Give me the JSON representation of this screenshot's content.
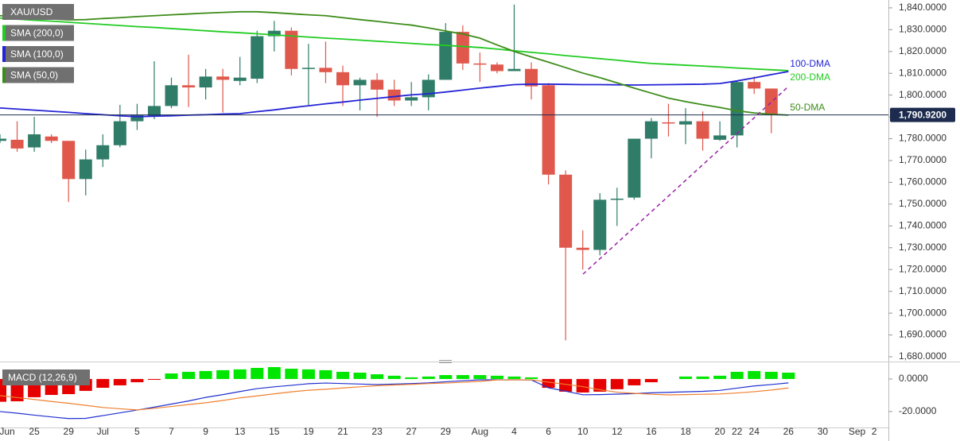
{
  "chart_data": [
    {
      "type": "candlestick",
      "categories": [
        "Jun",
        null,
        "25",
        null,
        "29",
        null,
        "Jul",
        null,
        "5",
        null,
        "7",
        null,
        "9",
        null,
        "13",
        null,
        "15",
        null,
        "19",
        null,
        "21",
        null,
        "23",
        null,
        "27",
        null,
        "29",
        null,
        "Aug",
        null,
        "4",
        null,
        "6",
        null,
        "10",
        null,
        "12",
        null,
        "16",
        null,
        "18",
        null,
        "20",
        "22",
        "24",
        null,
        "26",
        null,
        "30",
        null,
        "Sep",
        "2"
      ],
      "ylim": [
        1678.9,
        1843.6
      ],
      "yticks": [
        {
          "value": 1680,
          "label": "1,680.0000"
        },
        {
          "value": 1690,
          "label": "1,690.0000"
        },
        {
          "value": 1700,
          "label": "1,700.0000"
        },
        {
          "value": 1710,
          "label": "1,710.0000"
        },
        {
          "value": 1720,
          "label": "1,720.0000"
        },
        {
          "value": 1730,
          "label": "1,730.0000"
        },
        {
          "value": 1740,
          "label": "1,740.0000"
        },
        {
          "value": 1750,
          "label": "1,750.0000"
        },
        {
          "value": 1760,
          "label": "1,760.0000"
        },
        {
          "value": 1770,
          "label": "1,770.0000"
        },
        {
          "value": 1780,
          "label": "1,780.0000"
        },
        {
          "value": 1790,
          "label": "1,790.0000"
        },
        {
          "value": 1800,
          "label": "1,800.0000"
        },
        {
          "value": 1810,
          "label": "1,810.0000"
        },
        {
          "value": 1820,
          "label": "1,820.0000"
        },
        {
          "value": 1830,
          "label": "1,830.0000"
        },
        {
          "value": 1840,
          "label": "1,840.0000"
        }
      ],
      "last_price": {
        "value": 1790.92,
        "label": "1,790.9200"
      },
      "series": [
        {
          "name": "XAU/USD",
          "up_color": "#2f7d68",
          "down_color": "#e0574b",
          "open": [
            1779,
            1779.5,
            1776,
            1781,
            1779,
            1761.5,
            1770.5,
            1777,
            1788,
            1790.5,
            1795,
            1804.5,
            1803.5,
            1808.5,
            1806.5,
            1807.5,
            1827,
            1829.5,
            1812.5,
            1812.5,
            1810.5,
            1804.5,
            1807,
            1802.5,
            1797.5,
            1799,
            1807,
            1829,
            1814.5,
            1814,
            1811,
            1812,
            1804.5,
            1763.5,
            1730,
            1729,
            1752,
            1753,
            1780,
            1787.5,
            1786.5,
            1788,
            1779.5,
            1781.5,
            1806,
            1803,
            null,
            null,
            null,
            null,
            null,
            null
          ],
          "high": [
            1782,
            1788,
            1790,
            1782,
            1779,
            1775,
            1782,
            1795.5,
            1796,
            1815.5,
            1808,
            1818.5,
            1812,
            1812,
            1817.5,
            1829.5,
            1834,
            1831,
            1823.5,
            1824.5,
            1813.5,
            1808,
            1810,
            1807,
            1806,
            1809.5,
            1833,
            1832,
            1819.5,
            1815,
            1841.5,
            1815,
            1805.5,
            1765.5,
            1738,
            1755,
            1757.5,
            1780,
            1789.5,
            1796,
            1794,
            1792.5,
            1788,
            1806.5,
            1808.5,
            1803,
            null,
            null,
            null,
            null,
            null,
            null
          ],
          "low": [
            1778,
            1774,
            1774,
            1778,
            1751,
            1754,
            1767,
            1776,
            1784,
            1789,
            1794,
            1794.5,
            1798,
            1792,
            1804.5,
            1805.5,
            1820,
            1809,
            1795.5,
            1805.5,
            1795,
            1793,
            1790,
            1795,
            1795,
            1793,
            1807,
            1811.5,
            1806,
            1810,
            1811,
            1798,
            1759,
            1687.5,
            1720,
            1726.5,
            1740,
            1752,
            1771,
            1781,
            1777.5,
            1774.5,
            1779,
            1776,
            1800.5,
            1782.5,
            null,
            null,
            null,
            null,
            null,
            null
          ],
          "close": [
            1780,
            1775.5,
            1782,
            1779,
            1761.5,
            1770.5,
            1777,
            1788,
            1791,
            1795,
            1804.5,
            1803.5,
            1808.5,
            1807,
            1808,
            1827,
            1829.5,
            1812,
            1812.5,
            1810.5,
            1804.5,
            1807,
            1802.5,
            1797.5,
            1799,
            1807,
            1829,
            1814.5,
            1814,
            1811,
            1812,
            1804,
            1763.5,
            1730,
            1729,
            1752,
            1752.5,
            1780,
            1788,
            1787,
            1788,
            1780,
            1781.5,
            1806,
            1803,
            1791,
            null,
            null,
            null,
            null,
            null,
            null
          ]
        }
      ],
      "lines": [
        {
          "name": "SMA (200,0)",
          "label": "200-DMA",
          "color": "#22cc22",
          "values": [
            1835.3,
            1834.8,
            1834.3,
            1833.9,
            1833.4,
            1832.9,
            1832.4,
            1831.9,
            1831.4,
            1831,
            1830.5,
            1830,
            1829.5,
            1829,
            1828.6,
            1828.1,
            1827.6,
            1827.1,
            1826.6,
            1826.1,
            1825.7,
            1825.2,
            1824.7,
            1824.2,
            1823.7,
            1823.2,
            1822.8,
            1822.3,
            1821.8,
            1821.1,
            1820.3,
            1819.6,
            1818.9,
            1818.1,
            1817.4,
            1816.7,
            1816,
            1815.2,
            1814.5,
            1814.1,
            1813.7,
            1813.3,
            1812.9,
            1812.4,
            1812,
            1811.6,
            1811.2,
            null,
            null,
            null,
            null,
            null
          ]
        },
        {
          "name": "SMA (100,0)",
          "label": "100-DMA",
          "color": "#2424d6",
          "values": [
            1794.1,
            1793.6,
            1793.1,
            1792.6,
            1792.1,
            1791.5,
            1791,
            1790.5,
            1790.1,
            1790.3,
            1790.5,
            1790.8,
            1791,
            1791.3,
            1791.5,
            1792.4,
            1793.2,
            1794.2,
            1795.1,
            1796,
            1796.8,
            1797.7,
            1798.5,
            1799.3,
            1800.1,
            1800.6,
            1801.4,
            1802.3,
            1803.2,
            1804,
            1804.8,
            1805,
            1805,
            1804.9,
            1804.8,
            1804.8,
            1804.7,
            1804.6,
            1804.7,
            1804.8,
            1804.9,
            1805,
            1805.3,
            1806.5,
            1807.9,
            1809.4,
            1810.8,
            null,
            null,
            null,
            null,
            null
          ]
        },
        {
          "name": "SMA (50,0)",
          "label": "50-DMA",
          "color": "#3d8c1a",
          "values": [
            1836.4,
            1835.9,
            1835.4,
            1834.9,
            1834.5,
            1834.6,
            1835.1,
            1835.5,
            1836,
            1836.4,
            1836.8,
            1837.2,
            1837.6,
            1837.9,
            1838.2,
            1838.2,
            1837.8,
            1837.3,
            1836.8,
            1836.4,
            1835.5,
            1834.6,
            1833.8,
            1832.9,
            1832.1,
            1830.8,
            1829.4,
            1828,
            1826.1,
            1823,
            1820,
            1817.5,
            1815.1,
            1812.6,
            1810.1,
            1808,
            1805.6,
            1803.2,
            1800.9,
            1798.6,
            1797,
            1795.6,
            1794.3,
            1792.8,
            1791.8,
            1791.2,
            1790.8,
            null,
            null,
            null,
            null,
            null
          ]
        }
      ]
    },
    {
      "type": "macd",
      "name": "MACD (12,26,9)",
      "ylim": [
        -29.8,
        7.3
      ],
      "yticks": [
        {
          "value": 0,
          "label": "0.0000"
        },
        {
          "value": -20,
          "label": "-20.0000"
        }
      ],
      "histogram": {
        "up_color": "#00e600",
        "down_color": "#e60000",
        "values": [
          -14,
          -13.7,
          -11.2,
          -9.8,
          -9.3,
          -7.3,
          -5.4,
          -3.9,
          -2,
          -0.5,
          3.4,
          4.4,
          4.9,
          5.4,
          5.9,
          6.8,
          7.3,
          6.3,
          5.9,
          5.4,
          4.4,
          3.9,
          2.9,
          2,
          1,
          1.5,
          2.4,
          2.4,
          2.4,
          2,
          1.5,
          1,
          -5.4,
          -7.8,
          -8.3,
          -7.8,
          -6.3,
          -3.9,
          -2,
          0,
          1.5,
          1.5,
          2,
          4.4,
          4.9,
          4.4,
          3.9,
          null,
          null,
          null,
          null,
          null
        ]
      },
      "series": [
        {
          "color": "#2030d0",
          "values": [
            -20,
            -21,
            -22.2,
            -23.3,
            -24.3,
            -24.2,
            -22.5,
            -20.8,
            -19.1,
            -17.3,
            -15.4,
            -13.5,
            -11.3,
            -9.6,
            -7.7,
            -5.9,
            -4.8,
            -3.9,
            -2.9,
            -2.5,
            -2.8,
            -3.1,
            -3.4,
            -3.1,
            -2.8,
            -2.4,
            -1.7,
            -1.1,
            -0.5,
            -0.5,
            -0.5,
            -0.6,
            -5.4,
            -7.5,
            -9.7,
            -9.6,
            -9.3,
            -9,
            -8.5,
            -8.2,
            -7.9,
            -7.6,
            -7,
            -5.6,
            -4.3,
            -3.4,
            -2.4,
            null,
            null,
            null,
            null,
            null
          ]
        },
        {
          "color": "#f08030",
          "values": [
            -10.2,
            -11.4,
            -12.6,
            -13.8,
            -14.9,
            -16.2,
            -17.5,
            -18.3,
            -19,
            -18,
            -16.9,
            -15.7,
            -14.6,
            -13.2,
            -11.6,
            -10.4,
            -9.1,
            -7.9,
            -6.9,
            -6.3,
            -5.5,
            -4.8,
            -4.1,
            -3.7,
            -3.3,
            -2.8,
            -2.5,
            -2,
            -1.5,
            -0.6,
            -0.5,
            -0.5,
            -1.9,
            -3.3,
            -4.7,
            -6.6,
            -8.1,
            -8.8,
            -9.4,
            -9.8,
            -9.6,
            -9.4,
            -9.2,
            -8.6,
            -7.8,
            -6.8,
            -5.5,
            null,
            null,
            null,
            null,
            null
          ]
        }
      ]
    }
  ]
}
